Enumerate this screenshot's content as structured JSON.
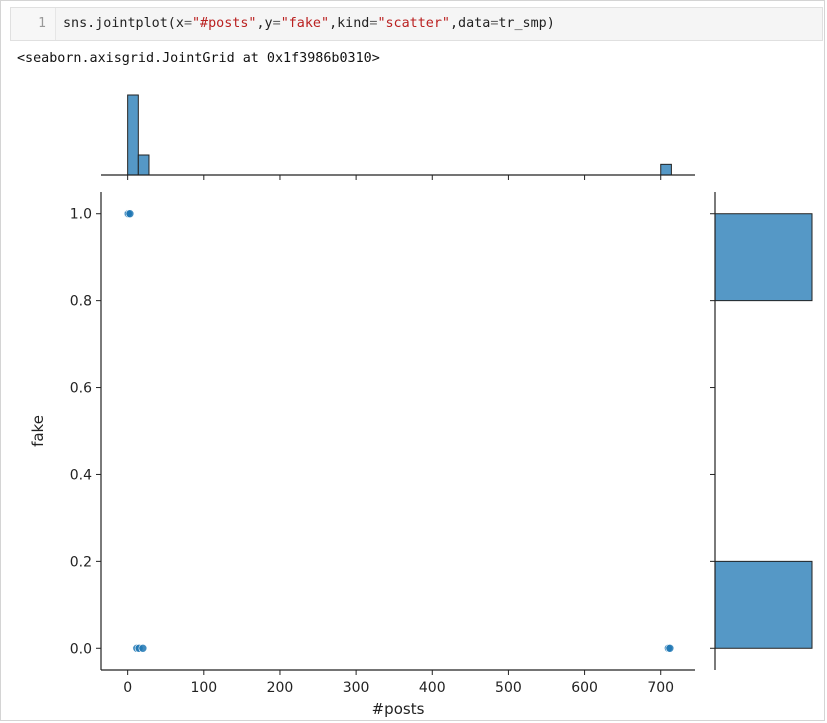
{
  "code_cell": {
    "line_number": "1",
    "tokens": [
      {
        "text": "sns.jointplot(x",
        "type": "plain"
      },
      {
        "text": "=",
        "type": "op"
      },
      {
        "text": "\"#posts\"",
        "type": "str"
      },
      {
        "text": ",y",
        "type": "plain"
      },
      {
        "text": "=",
        "type": "op"
      },
      {
        "text": "\"fake\"",
        "type": "str"
      },
      {
        "text": ",kind",
        "type": "plain"
      },
      {
        "text": "=",
        "type": "op"
      },
      {
        "text": "\"scatter\"",
        "type": "str"
      },
      {
        "text": ",data",
        "type": "plain"
      },
      {
        "text": "=",
        "type": "op"
      },
      {
        "text": "tr_smp)",
        "type": "plain"
      }
    ]
  },
  "output_text": "<seaborn.axisgrid.JointGrid at 0x1f3986b0310>",
  "chart_data": {
    "type": "scatter",
    "xlabel": "#posts",
    "ylabel": "fake",
    "xlim": [
      -35,
      745
    ],
    "ylim": [
      -0.05,
      1.05
    ],
    "x_ticks": [
      0,
      100,
      200,
      300,
      400,
      500,
      600,
      700
    ],
    "y_ticks": [
      0.0,
      0.2,
      0.4,
      0.6,
      0.8,
      1.0
    ],
    "y_tick_labels": [
      "0.0",
      "0.2",
      "0.4",
      "0.6",
      "0.8",
      "1.0"
    ],
    "color": "#1f77b4",
    "hist_color": "#5598c6",
    "points": [
      {
        "x": 0,
        "y": 1.0
      },
      {
        "x": 1,
        "y": 1.0
      },
      {
        "x": 3,
        "y": 1.0
      },
      {
        "x": 12,
        "y": 0.0
      },
      {
        "x": 15,
        "y": 0.0
      },
      {
        "x": 20,
        "y": 0.0
      },
      {
        "x": 710,
        "y": 0.0
      },
      {
        "x": 712,
        "y": 0.0
      }
    ],
    "x_marginal_bins": [
      {
        "x0": 0,
        "x1": 14,
        "count": 12
      },
      {
        "x0": 14,
        "x1": 28,
        "count": 3
      },
      {
        "x0": 700,
        "x1": 714,
        "count": 1.6
      }
    ],
    "y_marginal_bins": [
      {
        "y0": 0.0,
        "y1": 0.2,
        "count": 1
      },
      {
        "y0": 0.8,
        "y1": 1.0,
        "count": 1
      }
    ]
  }
}
